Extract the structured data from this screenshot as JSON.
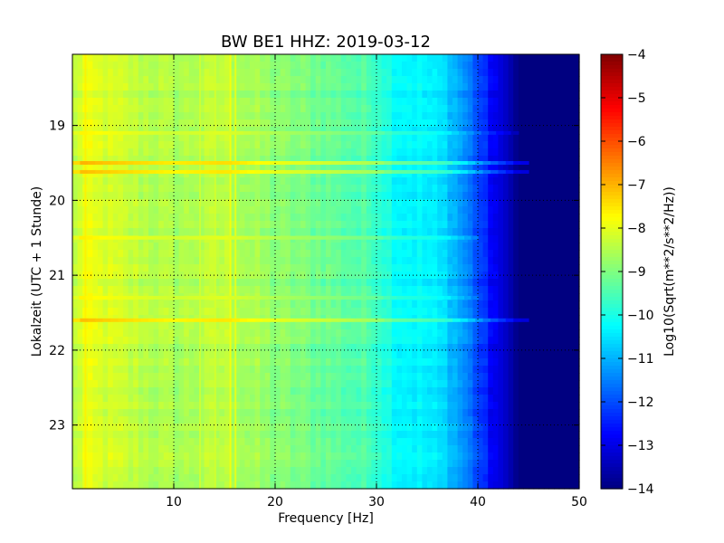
{
  "chart_data": {
    "type": "heatmap",
    "title": "BW BE1 HHZ: 2019-03-12",
    "xlabel": "Frequency [Hz]",
    "ylabel": "Lokalzeit (UTC + 1 Stunde)",
    "xlim": [
      0,
      50
    ],
    "ylim": [
      18.05,
      23.85
    ],
    "y_inverted": true,
    "x_ticks": [
      10,
      20,
      30,
      40,
      50
    ],
    "x_tick_labels": [
      "10",
      "20",
      "30",
      "40",
      "50"
    ],
    "y_ticks": [
      19,
      20,
      21,
      22,
      23
    ],
    "y_tick_labels": [
      "19",
      "20",
      "21",
      "22",
      "23"
    ],
    "grid": true,
    "colormap": "jet",
    "colorbar": {
      "label": "Log10(Sqrt(m**2/s**2/Hz))",
      "min": -14,
      "max": -4,
      "ticks": [
        -4,
        -5,
        -6,
        -7,
        -8,
        -9,
        -10,
        -11,
        -12,
        -13,
        -14
      ],
      "tick_labels": [
        "−4",
        "−5",
        "−6",
        "−7",
        "−8",
        "−9",
        "−10",
        "−11",
        "−12",
        "−13",
        "−14"
      ]
    },
    "frequency_profile": {
      "freqs": [
        0,
        1,
        5,
        10,
        15,
        20,
        25,
        30,
        32,
        35,
        37,
        39,
        41,
        43,
        44,
        50
      ],
      "values": [
        -8.6,
        -8.0,
        -8.3,
        -8.6,
        -8.4,
        -8.9,
        -9.2,
        -9.6,
        -10.2,
        -10.4,
        -10.7,
        -11.5,
        -12.6,
        -13.4,
        -14.0,
        -14.0
      ]
    },
    "horizontal_events": [
      {
        "time": 19.5,
        "value_offset": 1.0,
        "fmax": 45
      },
      {
        "time": 19.62,
        "value_offset": 0.9,
        "fmax": 45
      },
      {
        "time": 21.6,
        "value_offset": 0.9,
        "fmax": 45
      },
      {
        "time": 20.5,
        "value_offset": 0.4,
        "fmax": 40
      },
      {
        "time": 21.3,
        "value_offset": 0.35,
        "fmax": 40
      },
      {
        "time": 19.1,
        "value_offset": 0.35,
        "fmax": 44
      }
    ],
    "vertical_lines": [
      {
        "freq": 15.5,
        "value_offset": 0.7
      },
      {
        "freq": 16.0,
        "value_offset": 0.6
      },
      {
        "freq": 1.2,
        "value_offset": 0.4
      },
      {
        "freq": 12.5,
        "value_offset": 0.3
      },
      {
        "freq": 14.0,
        "value_offset": 0.3
      }
    ]
  }
}
